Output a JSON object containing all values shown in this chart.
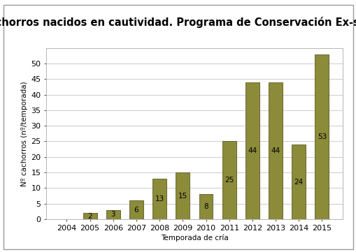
{
  "title": "Cachorros nacidos en cautividad. Programa de Conservación Ex-situ",
  "xlabel": "Temporada de cría",
  "ylabel": "Nº cachorros (nº/temporada)",
  "categories": [
    "2004",
    "2005",
    "2006",
    "2007",
    "2008",
    "2009",
    "2010",
    "2011",
    "2012",
    "2013",
    "2014",
    "2015"
  ],
  "values": [
    0,
    2,
    3,
    6,
    13,
    15,
    8,
    25,
    44,
    44,
    24,
    53
  ],
  "bar_color": "#8B8B3A",
  "bar_edge_color": "#5a5a20",
  "plot_bg_color": "#ffffff",
  "figure_bg": "#ffffff",
  "grid_color": "#cccccc",
  "ylim": [
    0,
    55
  ],
  "yticks": [
    0,
    5,
    10,
    15,
    20,
    25,
    30,
    35,
    40,
    45,
    50
  ],
  "title_fontsize": 10.5,
  "label_fontsize": 7.5,
  "tick_fontsize": 8,
  "value_fontsize": 7.5,
  "bar_width": 0.6
}
